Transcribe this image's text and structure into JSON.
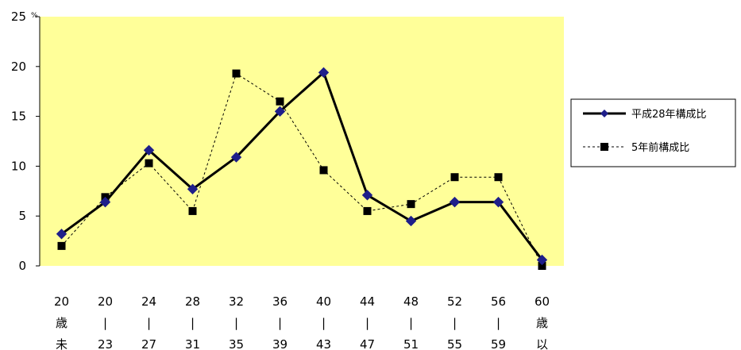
{
  "chart_data": {
    "type": "line",
    "y_unit": "%",
    "ylim": [
      0,
      25
    ],
    "yticks": [
      "0",
      "5",
      "10",
      "15",
      "20",
      "25"
    ],
    "categories": [
      [
        "20",
        "歳",
        "未"
      ],
      [
        "20",
        "|",
        "23"
      ],
      [
        "24",
        "|",
        "27"
      ],
      [
        "28",
        "|",
        "31"
      ],
      [
        "32",
        "|",
        "35"
      ],
      [
        "36",
        "|",
        "39"
      ],
      [
        "40",
        "|",
        "43"
      ],
      [
        "44",
        "|",
        "47"
      ],
      [
        "48",
        "|",
        "51"
      ],
      [
        "52",
        "|",
        "55"
      ],
      [
        "56",
        "|",
        "59"
      ],
      [
        "60",
        "歳",
        "以"
      ]
    ],
    "series": [
      {
        "name": "平成28年構成比",
        "values": [
          3.2,
          6.4,
          11.6,
          7.7,
          10.9,
          15.5,
          19.4,
          7.1,
          4.5,
          6.4,
          6.4,
          0.6
        ],
        "color": "#000000",
        "marker": "diamond",
        "marker_color": "#1f1f8a",
        "line_style": "solid"
      },
      {
        "name": "5年前構成比",
        "values": [
          2.0,
          6.9,
          10.3,
          5.5,
          19.3,
          16.5,
          9.6,
          5.5,
          6.2,
          8.9,
          8.9,
          0.0
        ],
        "color": "#000000",
        "marker": "square",
        "marker_color": "#000000",
        "line_style": "dashed"
      }
    ],
    "plot_background": "#ffff99",
    "grid": false,
    "legend_position": "right"
  }
}
